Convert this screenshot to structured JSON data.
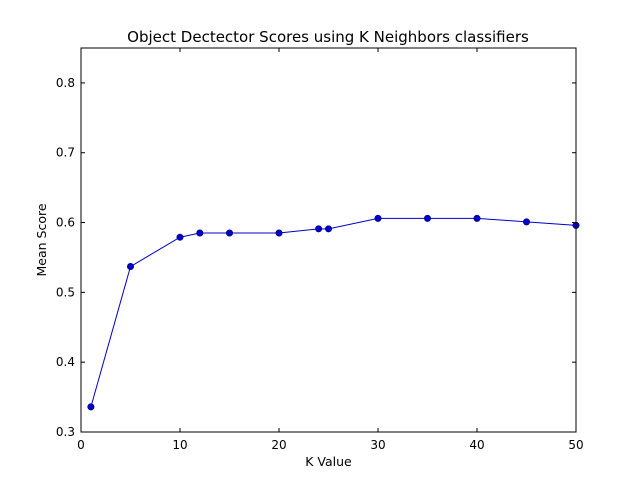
{
  "chart_data": {
    "type": "line",
    "title": "Object Dectector Scores using K Neighbors classifiers",
    "xlabel": "K Value",
    "ylabel": "Mean Score",
    "xlim": [
      0,
      50
    ],
    "ylim": [
      0.3,
      0.85
    ],
    "xticks": [
      0,
      10,
      20,
      30,
      40,
      50
    ],
    "yticks": [
      0.3,
      0.4,
      0.5,
      0.6,
      0.7,
      0.8
    ],
    "xtick_labels": [
      "0",
      "10",
      "20",
      "30",
      "40",
      "50"
    ],
    "ytick_labels": [
      "0.3",
      "0.4",
      "0.5",
      "0.6",
      "0.7",
      "0.8"
    ],
    "grid": false,
    "series": [
      {
        "color": "#0000cc",
        "x": [
          1,
          5,
          10,
          12,
          15,
          20,
          24,
          25,
          30,
          35,
          40,
          45,
          50
        ],
        "y": [
          0.336,
          0.537,
          0.579,
          0.585,
          0.585,
          0.585,
          0.591,
          0.591,
          0.606,
          0.606,
          0.606,
          0.601,
          0.596
        ]
      }
    ]
  }
}
